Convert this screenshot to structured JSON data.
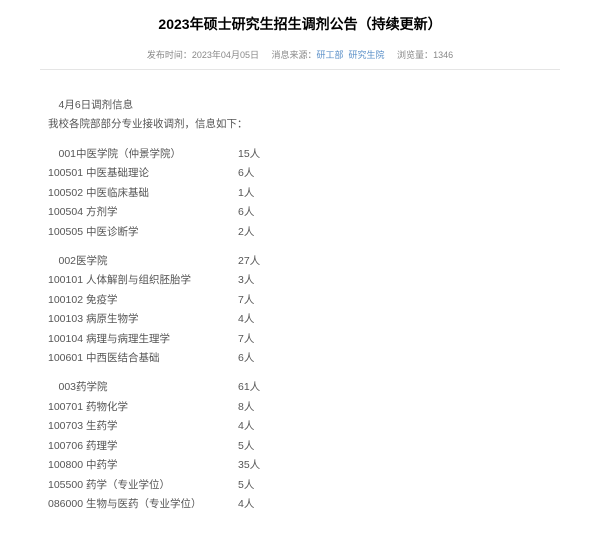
{
  "title": "2023年硕士研究生招生调剂公告（持续更新）",
  "meta": {
    "publish_label": "发布时间：",
    "publish_time": "2023年04月05日",
    "source_label": "消息来源：",
    "source_link1": "研工部",
    "source_link2": "研究生院",
    "views_label": "浏览量：",
    "views": "1346"
  },
  "intro_line1": "4月6日调剂信息",
  "intro_line2": "我校各院部部分专业接收调剂，信息如下：",
  "sections": [
    {
      "header_left": "001中医学院（仲景学院）",
      "header_count": "15人",
      "rows": [
        {
          "label": "100501 中医基础理论",
          "count": "6人"
        },
        {
          "label": "100502 中医临床基础",
          "count": "1人"
        },
        {
          "label": "100504 方剂学",
          "count": "6人"
        },
        {
          "label": "100505 中医诊断学",
          "count": "2人"
        }
      ]
    },
    {
      "header_left": "002医学院",
      "header_count": "27人",
      "rows": [
        {
          "label": "100101 人体解剖与组织胚胎学",
          "count": "3人"
        },
        {
          "label": "100102 免疫学",
          "count": "7人"
        },
        {
          "label": "100103 病原生物学",
          "count": "4人"
        },
        {
          "label": "100104 病理与病理生理学",
          "count": "7人"
        },
        {
          "label": "100601 中西医结合基础",
          "count": "6人"
        }
      ]
    },
    {
      "header_left": "003药学院",
      "header_count": "61人",
      "rows": [
        {
          "label": "100701 药物化学",
          "count": "8人"
        },
        {
          "label": "100703 生药学",
          "count": "4人"
        },
        {
          "label": "100706 药理学",
          "count": "5人"
        },
        {
          "label": "100800 中药学",
          "count": "35人"
        },
        {
          "label": "105500 药学（专业学位）",
          "count": "5人"
        },
        {
          "label": "086000 生物与医药（专业学位）",
          "count": "4人"
        }
      ]
    }
  ]
}
